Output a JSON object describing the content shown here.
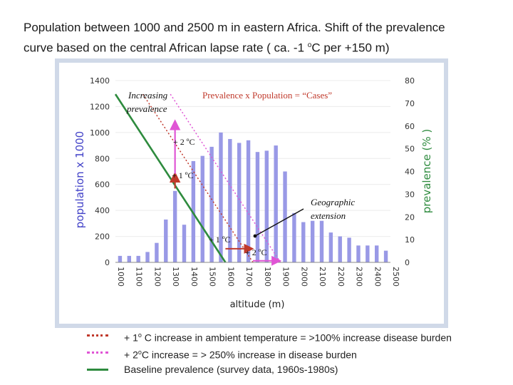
{
  "slide": {
    "title_line1": "Population between 1000 and 2500 m in eastern Africa.  Shift of the prevalence",
    "title_line2_pre": "curve based on the central African lapse rate ( ca. -1 ",
    "title_line2_sup": "o",
    "title_line2_post": "C per +150 m)"
  },
  "legend": [
    {
      "pre": "+ 1",
      "sup": "o",
      "post": " C increase in ambient temperature = >100% increase disease burden",
      "color": "#c0392b",
      "style": "dotted"
    },
    {
      "pre": "+ 2",
      "sup": "o",
      "post": "C increase = > 250% increase in disease burden",
      "color": "#e055d5",
      "style": "dotted"
    },
    {
      "pre": "Baseline prevalence (survey data, 1960s-1980s)",
      "sup": "",
      "post": "",
      "color": "#2e8b3e",
      "style": "solid"
    }
  ],
  "chart_data": {
    "type": "bar",
    "xlabel": "altitude (m)",
    "ylabel_left": "population x 1000",
    "ylabel_right": "prevalence (% )",
    "ylim_left": [
      0,
      1400
    ],
    "ylim_right": [
      0,
      80
    ],
    "yticks_left": [
      0,
      200,
      400,
      600,
      800,
      1000,
      1200,
      1400
    ],
    "yticks_right": [
      0,
      10,
      20,
      30,
      40,
      50,
      60,
      70,
      80
    ],
    "xticks": [
      1000,
      1100,
      1200,
      1300,
      1400,
      1500,
      1600,
      1700,
      1800,
      1900,
      2000,
      2100,
      2200,
      2300,
      2400,
      2500
    ],
    "x": [
      1025,
      1075,
      1125,
      1175,
      1225,
      1275,
      1325,
      1375,
      1425,
      1475,
      1525,
      1575,
      1625,
      1675,
      1725,
      1775,
      1825,
      1875,
      1925,
      1975,
      2025,
      2075,
      2125,
      2175,
      2225,
      2275,
      2325,
      2375,
      2425,
      2475
    ],
    "population": [
      50,
      50,
      50,
      80,
      150,
      330,
      550,
      290,
      780,
      820,
      890,
      1000,
      950,
      920,
      940,
      850,
      860,
      900,
      700,
      380,
      310,
      320,
      320,
      230,
      200,
      190,
      130,
      130,
      130,
      90
    ],
    "baseline_prevalence": {
      "x": [
        1000,
        1600
      ],
      "y": [
        74,
        0
      ]
    },
    "shift_1C_prevalence": {
      "x": [
        1150,
        1750
      ],
      "y": [
        74,
        0
      ]
    },
    "shift_2C_prevalence": {
      "x": [
        1300,
        1900
      ],
      "y": [
        74,
        0
      ]
    },
    "colors": {
      "bars": "#9999e6",
      "baseline": "#2e8b3e",
      "shift1": "#c0392b",
      "shift2": "#e055d5",
      "arrow1": "#c0392b",
      "arrow2": "#e055d5"
    },
    "annotations": {
      "increasing_prevalence_1": "Increasing",
      "increasing_prevalence_2": "prevalence",
      "cases": "Prevalence x Population = “Cases”",
      "plus2_upper": "+ 2 ºC",
      "plus1_upper": "+ 1 ºC",
      "geographic_1": "Geographic",
      "geographic_2": "extension",
      "plus1_lower": "+ 1 ºC",
      "plus2_lower": "+ 2 ºC"
    }
  }
}
